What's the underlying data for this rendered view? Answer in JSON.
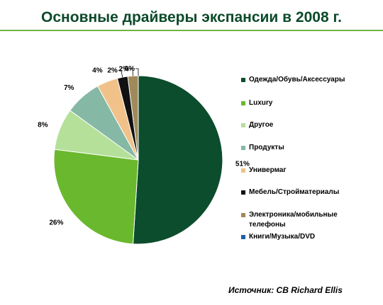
{
  "chart_data": {
    "type": "pie",
    "title": "Основные драйверы экспансии в 2008 г.",
    "categories": [
      "Одежда/Обувь/Аксессуары",
      "Luxury",
      "Другое",
      "Продукты",
      "Универмаг",
      "Мебель/Стройматериалы",
      "Электроника/мобильные телефоны",
      "Книги/Музыка/DVD"
    ],
    "values": [
      51,
      26,
      8,
      7,
      4,
      2,
      2,
      0
    ],
    "value_labels": [
      "51%",
      "26%",
      "8%",
      "7%",
      "4%",
      "2%",
      "2%",
      "0%"
    ],
    "colors": [
      "#0b4d2c",
      "#6ab82e",
      "#b5e09a",
      "#86b8a6",
      "#f0c28a",
      "#111111",
      "#a08a5a",
      "#1f5fa8"
    ],
    "legend_position": "right"
  },
  "source": "Источник: CB Richard Ellis"
}
